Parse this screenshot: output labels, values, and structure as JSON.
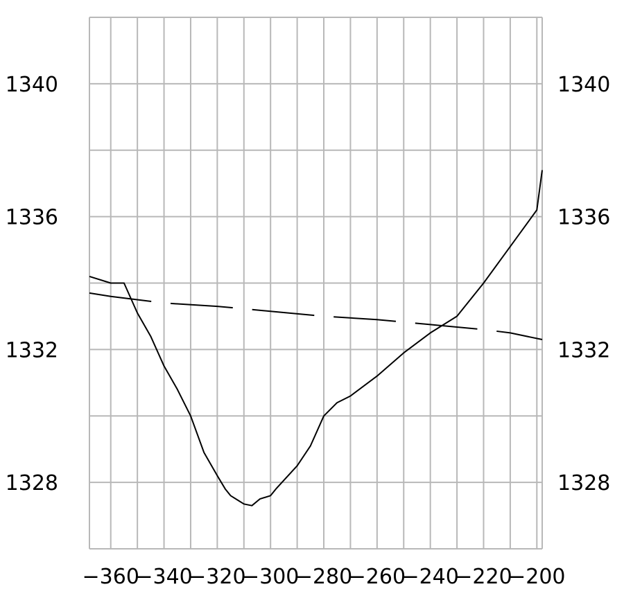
{
  "chart_data": {
    "type": "line",
    "title": "",
    "xlabel": "",
    "ylabel": "",
    "xlim": [
      -368,
      -198
    ],
    "ylim": [
      1326,
      1342
    ],
    "x_ticks": [
      -360,
      -340,
      -320,
      -300,
      -280,
      -260,
      -240,
      -220,
      -200
    ],
    "x_tick_labels": [
      "−360",
      "−340",
      "−320",
      "−300",
      "−280",
      "−260",
      "−240",
      "−220",
      "−200"
    ],
    "y_ticks": [
      1328,
      1332,
      1336,
      1340
    ],
    "y_tick_labels": [
      "1328",
      "1332",
      "1336",
      "1340"
    ],
    "y_labels_both_sides": true,
    "x_grid_step": 10,
    "y_grid_step": 2,
    "grid": true,
    "legend": "none",
    "series": [
      {
        "style": "solid",
        "color": "#000000",
        "x": [
          -368,
          -360,
          -355,
          -350,
          -345,
          -340,
          -335,
          -330,
          -325,
          -320,
          -317,
          -315,
          -312,
          -310,
          -307,
          -304,
          -300,
          -298,
          -290,
          -285,
          -280,
          -275,
          -270,
          -260,
          -250,
          -240,
          -230,
          -220,
          -210,
          -200,
          -198
        ],
        "y": [
          1334.2,
          1334.0,
          1334.0,
          1333.1,
          1332.4,
          1331.5,
          1330.8,
          1330.0,
          1328.9,
          1328.2,
          1327.8,
          1327.6,
          1327.45,
          1327.35,
          1327.3,
          1327.5,
          1327.6,
          1327.8,
          1328.5,
          1329.1,
          1330.0,
          1330.4,
          1330.6,
          1331.2,
          1331.9,
          1332.5,
          1333.0,
          1334.0,
          1335.1,
          1336.2,
          1337.4
        ]
      },
      {
        "style": "dashed",
        "color": "#000000",
        "x": [
          -368,
          -360,
          -340,
          -320,
          -300,
          -280,
          -260,
          -240,
          -220,
          -210,
          -198
        ],
        "y": [
          1333.7,
          1333.6,
          1333.4,
          1333.3,
          1333.15,
          1333.0,
          1332.9,
          1332.75,
          1332.6,
          1332.5,
          1332.3
        ]
      }
    ]
  }
}
